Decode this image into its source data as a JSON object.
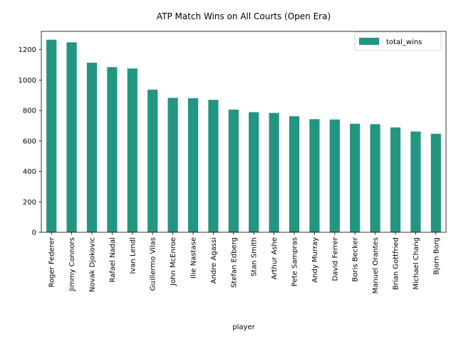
{
  "chart_data": {
    "type": "bar",
    "title": "ATP Match Wins on All Courts (Open Era)",
    "xlabel": "player",
    "ylabel": "",
    "categories": [
      "Roger Federer",
      "Jimmy Connors",
      "Novak Djokovic",
      "Rafael Nadal",
      "Ivan Lendl",
      "Guillermo Vilas",
      "John McEnroe",
      "Ilie Nastase",
      "Andre Agassi",
      "Stefan Edberg",
      "Stan Smith",
      "Arthur Ashe",
      "Pete Sampras",
      "Andy Murray",
      "David Ferrer",
      "Boris Becker",
      "Manuel Orantes",
      "Brian Gottfried",
      "Michael Chang",
      "Bjorn Borg"
    ],
    "series": [
      {
        "name": "total_wins",
        "color": "#229680",
        "values": [
          1265,
          1248,
          1114,
          1085,
          1076,
          937,
          883,
          881,
          870,
          806,
          789,
          784,
          762,
          743,
          741,
          713,
          710,
          689,
          662,
          647
        ]
      }
    ],
    "ylim": [
      0,
      1320
    ],
    "yticks": [
      0,
      200,
      400,
      600,
      800,
      1000,
      1200
    ],
    "grid": false,
    "legend_position": "top-right"
  }
}
